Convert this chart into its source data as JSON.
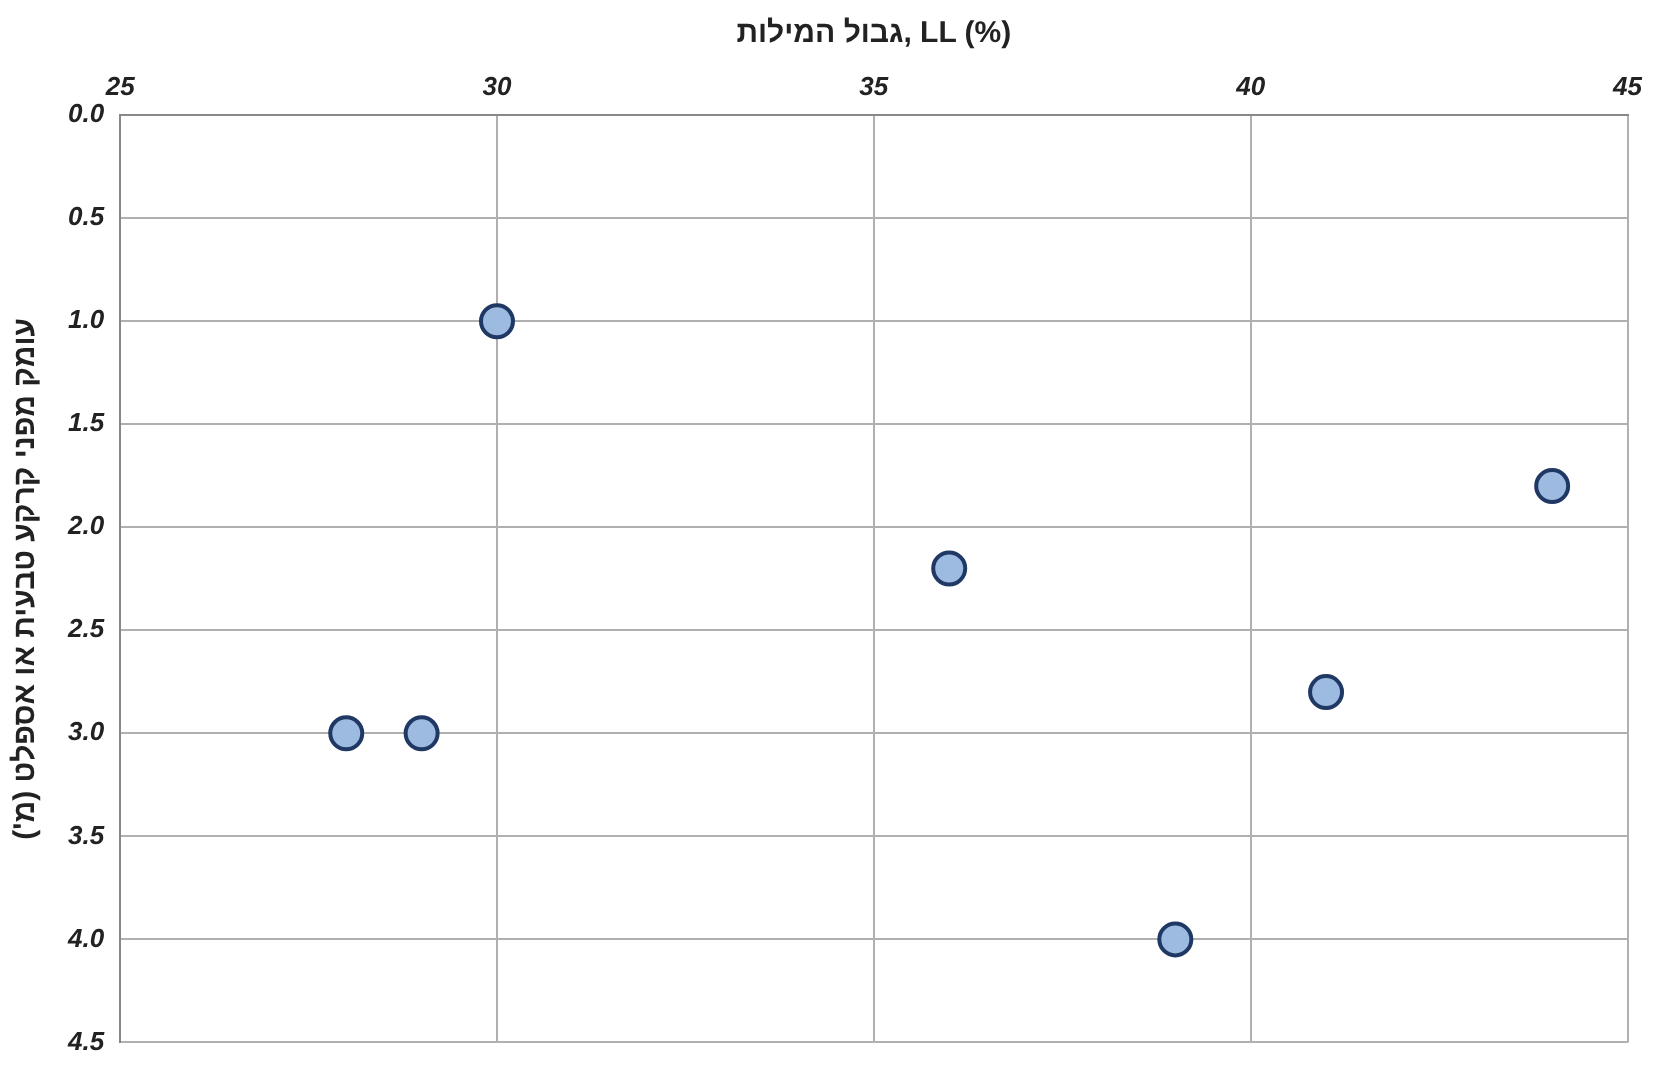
{
  "chart_data": {
    "type": "scatter",
    "xlabel": "גבול המילות, LL (%)",
    "ylabel": "עומק מפני קרקע טבעית או אספלט (מ')",
    "xlim": [
      25,
      45
    ],
    "xticks": [
      25,
      30,
      35,
      40,
      45
    ],
    "ylim": [
      4.5,
      0
    ],
    "yticks": [
      {
        "value": 0,
        "label": "0.0"
      },
      {
        "value": 0.5,
        "label": "0.5"
      },
      {
        "value": 1,
        "label": "1.0"
      },
      {
        "value": 1.5,
        "label": "1.5"
      },
      {
        "value": 2,
        "label": "2.0"
      },
      {
        "value": 2.5,
        "label": "2.5"
      },
      {
        "value": 3,
        "label": "3.0"
      },
      {
        "value": 3.5,
        "label": "3.5"
      },
      {
        "value": 4,
        "label": "4.0"
      },
      {
        "value": 4.5,
        "label": "4.5"
      }
    ],
    "x": [
      28,
      29,
      30,
      36,
      39,
      41,
      44
    ],
    "values": [
      3.0,
      3.0,
      1.0,
      2.2,
      4.0,
      2.8,
      1.8
    ],
    "color": "#9dbbe0",
    "marker": "circle",
    "grid": true,
    "legend": false
  }
}
